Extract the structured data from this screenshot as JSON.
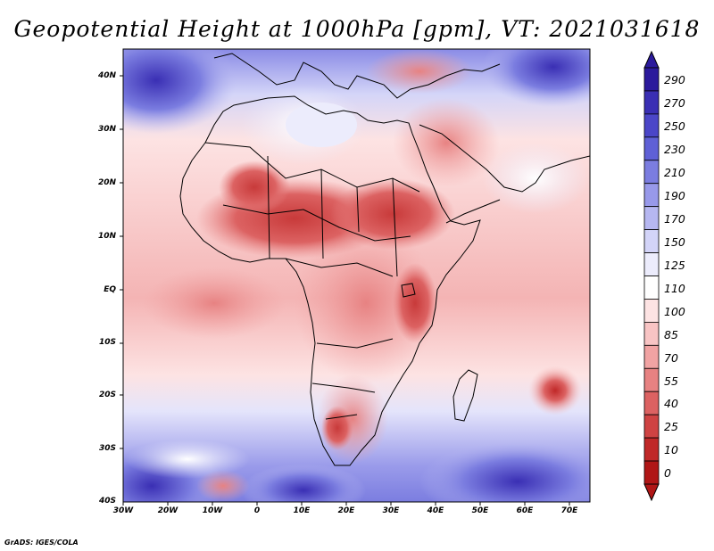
{
  "title": "Geopotential Height at 1000hPa [gpm], VT: 2021031618",
  "footer": "GrADS: IGES/COLA",
  "map": {
    "lat_labels": [
      "40N",
      "30N",
      "20N",
      "10N",
      "EQ",
      "10S",
      "20S",
      "30S",
      "40S"
    ],
    "lon_labels": [
      "30W",
      "20W",
      "10W",
      "0",
      "10E",
      "20E",
      "30E",
      "40E",
      "50E",
      "60E",
      "70E"
    ]
  },
  "colorbar": {
    "levels": [
      "290",
      "270",
      "250",
      "230",
      "210",
      "190",
      "170",
      "150",
      "125",
      "110",
      "100",
      "85",
      "70",
      "55",
      "40",
      "25",
      "10",
      "0"
    ],
    "colors": [
      "#2b1a9c",
      "#3a2fb4",
      "#4b46c8",
      "#5f60d6",
      "#7b7de0",
      "#9899ea",
      "#b6b7f1",
      "#d3d4f8",
      "#ececfc",
      "#ffffff",
      "#fde3e3",
      "#f8c4c4",
      "#f1a3a3",
      "#e78282",
      "#dc6262",
      "#cf4343",
      "#c02828",
      "#b01616"
    ]
  },
  "colors": {
    "frame": "#000000",
    "background": "#ffffff",
    "coast": "#000000"
  }
}
